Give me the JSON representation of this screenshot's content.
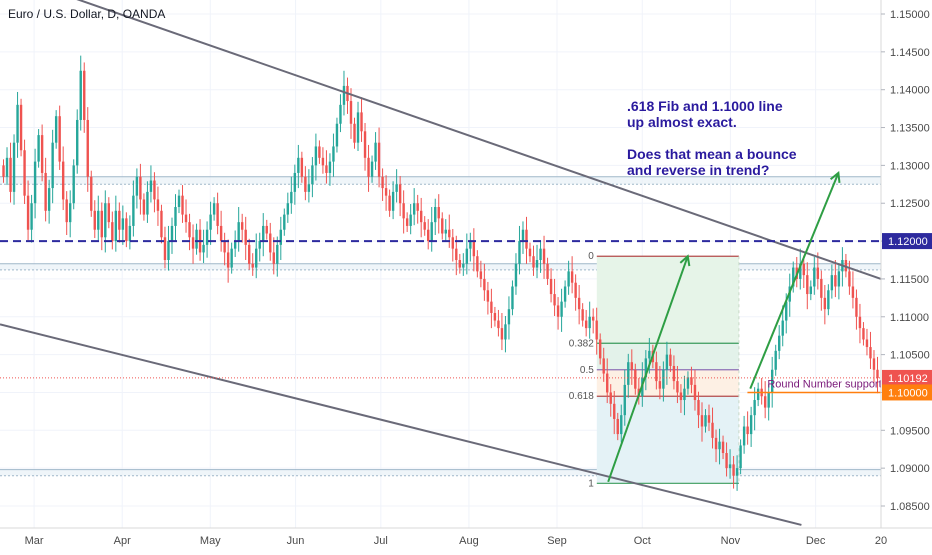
{
  "chart_data": {
    "type": "candlestick",
    "title": "Euro / U.S. Dollar, D, OANDA",
    "y_ticks": [
      "1.15000",
      "1.14500",
      "1.14000",
      "1.13500",
      "1.13000",
      "1.12500",
      "1.12000",
      "1.11500",
      "1.11000",
      "1.10500",
      "1.10000",
      "1.09500",
      "1.09000",
      "1.08500"
    ],
    "y_tick_values": [
      1.15,
      1.145,
      1.14,
      1.135,
      1.13,
      1.125,
      1.12,
      1.115,
      1.11,
      1.105,
      1.1,
      1.095,
      1.09,
      1.085
    ],
    "ylim": [
      1.0825,
      1.1515
    ],
    "x_ticks": [
      "Mar",
      "Apr",
      "May",
      "Jun",
      "Jul",
      "Aug",
      "Sep",
      "Oct",
      "Nov",
      "Dec",
      "20"
    ],
    "x_range_days": [
      0,
      310
    ],
    "x_tick_days": [
      12,
      43,
      74,
      104,
      134,
      165,
      196,
      226,
      257,
      287,
      318
    ],
    "price_series": [
      1.1285,
      1.131,
      1.1265,
      1.133,
      1.138,
      1.132,
      1.126,
      1.1215,
      1.125,
      1.1305,
      1.134,
      1.129,
      1.124,
      1.127,
      1.133,
      1.1365,
      1.1305,
      1.1255,
      1.1225,
      1.125,
      1.13,
      1.136,
      1.1425,
      1.136,
      1.1285,
      1.124,
      1.1215,
      1.124,
      1.1205,
      1.125,
      1.1225,
      1.12,
      1.124,
      1.1215,
      1.123,
      1.12,
      1.122,
      1.126,
      1.1285,
      1.1255,
      1.1235,
      1.1265,
      1.128,
      1.1255,
      1.124,
      1.1205,
      1.1175,
      1.12,
      1.122,
      1.1245,
      1.126,
      1.1235,
      1.1225,
      1.1205,
      1.119,
      1.1215,
      1.1185,
      1.1195,
      1.1215,
      1.1235,
      1.125,
      1.122,
      1.12,
      1.1185,
      1.1165,
      1.119,
      1.12,
      1.1225,
      1.1215,
      1.1195,
      1.117,
      1.1165,
      1.119,
      1.12,
      1.122,
      1.121,
      1.1185,
      1.117,
      1.1195,
      1.1215,
      1.1235,
      1.125,
      1.1265,
      1.129,
      1.131,
      1.1285,
      1.1265,
      1.1275,
      1.13,
      1.1325,
      1.131,
      1.13,
      1.129,
      1.1305,
      1.1325,
      1.1355,
      1.138,
      1.1405,
      1.1385,
      1.1355,
      1.133,
      1.137,
      1.1345,
      1.131,
      1.1285,
      1.1305,
      1.133,
      1.1285,
      1.127,
      1.126,
      1.124,
      1.1265,
      1.1275,
      1.125,
      1.123,
      1.122,
      1.1235,
      1.125,
      1.124,
      1.1225,
      1.1215,
      1.12,
      1.1225,
      1.1245,
      1.123,
      1.121,
      1.1215,
      1.1205,
      1.119,
      1.1175,
      1.1165,
      1.117,
      1.119,
      1.12,
      1.118,
      1.116,
      1.115,
      1.1135,
      1.112,
      1.1105,
      1.1095,
      1.1085,
      1.107,
      1.109,
      1.111,
      1.114,
      1.117,
      1.12,
      1.1215,
      1.119,
      1.118,
      1.1165,
      1.1175,
      1.119,
      1.117,
      1.115,
      1.113,
      1.1115,
      1.11,
      1.112,
      1.114,
      1.116,
      1.1145,
      1.1125,
      1.111,
      1.1095,
      1.1085,
      1.11,
      1.1095,
      1.107,
      1.1045,
      1.1025,
      1.1,
      1.0985,
      1.0965,
      1.0945,
      1.097,
      1.101,
      1.104,
      1.103,
      1.1005,
      1.0995,
      1.102,
      1.1045,
      1.1055,
      1.104,
      1.1015,
      1.1005,
      1.103,
      1.105,
      1.1035,
      1.1015,
      1.1,
      1.099,
      1.1005,
      1.102,
      1.101,
      1.099,
      1.097,
      1.0955,
      1.097,
      1.096,
      1.094,
      1.0925,
      1.0935,
      1.092,
      1.09,
      1.0905,
      1.089,
      1.09,
      1.093,
      1.0955,
      1.0945,
      1.097,
      1.099,
      1.1005,
      1.0995,
      1.098,
      1.1,
      1.103,
      1.1055,
      1.1075,
      1.1095,
      1.112,
      1.114,
      1.1165,
      1.115,
      1.117,
      1.1155,
      1.113,
      1.114,
      1.1165,
      1.115,
      1.1125,
      1.111,
      1.1135,
      1.1155,
      1.114,
      1.116,
      1.1175,
      1.116,
      1.114,
      1.1125,
      1.11,
      1.1085,
      1.107,
      1.106,
      1.1045,
      1.103,
      1.1019
    ],
    "current_price": "1.10192",
    "round_number_level": "1.10000",
    "level_1_12": "1.12000",
    "trendline_upper": {
      "from": [
        0,
        1.1555
      ],
      "to": [
        310,
        1.115
      ]
    },
    "trendline_lower": {
      "from": [
        0,
        1.109
      ],
      "to": [
        282,
        1.0825
      ]
    },
    "channel_bands": [
      {
        "top": 1.1285,
        "bottom": 1.1275
      },
      {
        "top": 1.117,
        "bottom": 1.1162
      },
      {
        "top": 1.0898,
        "bottom": 1.089
      }
    ],
    "fib": {
      "x_start": 210,
      "x_end": 260,
      "high": 1.118,
      "low": 1.088,
      "levels": [
        {
          "label": "0",
          "value": 1.118
        },
        {
          "label": "0.382",
          "value": 1.1065
        },
        {
          "label": "0.5",
          "value": 1.103
        },
        {
          "label": "0.618",
          "value": 1.0995
        },
        {
          "label": "1",
          "value": 1.088
        }
      ]
    },
    "arrows": [
      {
        "from": [
          214,
          1.0882
        ],
        "to": [
          242,
          1.118
        ]
      },
      {
        "from": [
          264,
          1.1005
        ],
        "to": [
          295,
          1.129
        ]
      }
    ],
    "annotation": {
      "lines": [
        ".618 Fib and 1.1000 line",
        "up almost exact.",
        "",
        "Does that mean a bounce",
        "and reverse in trend?"
      ]
    },
    "support_label": "Round Number support ?",
    "colors": {
      "up": "#26a69a",
      "down": "#ef5350",
      "trend": "#6a6a78",
      "dash_line": "#2d2a9e",
      "arrow": "#2e9e44",
      "fib_green": "#3a9b5c",
      "fib_red": "#b34a4a",
      "fib_purple": "#8e6fb5",
      "orange": "#ff7f0e",
      "current": "#ef5350",
      "band": "#9fb7c9"
    }
  }
}
